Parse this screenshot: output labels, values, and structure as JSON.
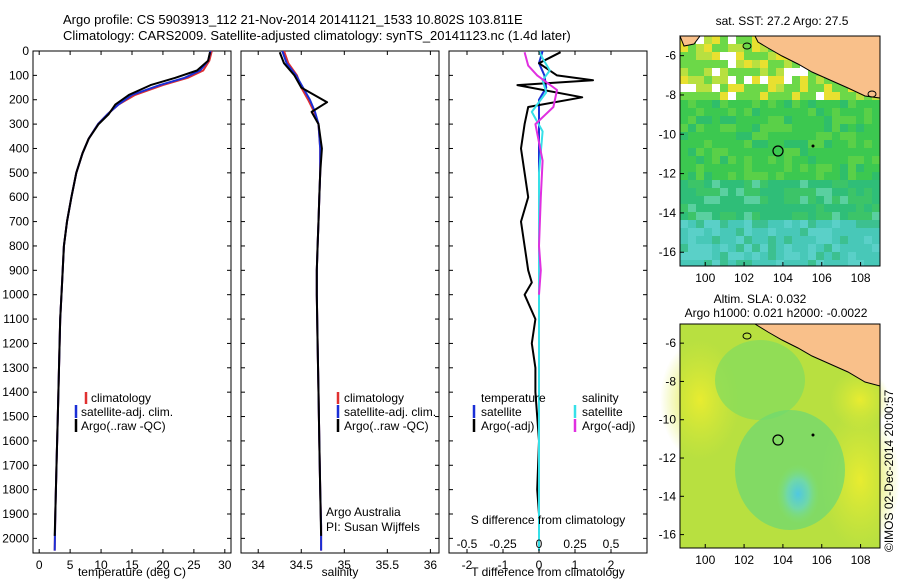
{
  "title_line1": "Argo profile: CS 5903913_112 21-Nov-2014 20141121_1533 10.802S 103.811E",
  "title_line2": "Climatology: CARS2009. Satellite-adjusted climatology: synTS_20141123.nc (1.4d later)",
  "side_label": "©IMOS 02-Dec-2014 20:00:57",
  "colors": {
    "climatology": "#e03030",
    "satellite": "#1a2fd6",
    "argo": "#000000",
    "sat_salinity": "#36e0e8",
    "argo_salinity": "#e030e0"
  },
  "chart_data": [
    {
      "type": "line",
      "name": "temperature-panel",
      "xlabel": "temperature (deg C)",
      "ylabel": "",
      "xlim": [
        -1,
        31
      ],
      "ylim": [
        2060,
        0
      ],
      "xticks": [
        0,
        5,
        10,
        15,
        20,
        25,
        30
      ],
      "yticks": [
        0,
        100,
        200,
        300,
        400,
        500,
        600,
        700,
        800,
        900,
        1000,
        1100,
        1200,
        1300,
        1400,
        1500,
        1600,
        1700,
        1800,
        1900,
        2000
      ],
      "legend": [
        "climatology",
        "satellite-adj. clim.",
        "Argo(..raw -QC)"
      ],
      "series": [
        {
          "name": "climatology",
          "color": "#e03030",
          "x": [
            27.9,
            27.5,
            26.5,
            24.0,
            20.0,
            15.5,
            12.8,
            11.0,
            9.5,
            8.0,
            7.0,
            6.0,
            5.2,
            4.5,
            4.0,
            3.7,
            3.4,
            3.2,
            3.0,
            2.8,
            2.6,
            2.5
          ],
          "y": [
            0,
            40,
            80,
            110,
            140,
            180,
            220,
            260,
            300,
            360,
            420,
            500,
            600,
            700,
            800,
            950,
            1100,
            1300,
            1500,
            1700,
            1900,
            2050
          ]
        },
        {
          "name": "satellite-adj. clim.",
          "color": "#1a2fd6",
          "x": [
            27.7,
            27.3,
            26.0,
            23.5,
            19.5,
            15.0,
            12.8,
            11.0,
            9.5,
            8.0,
            7.0,
            6.0,
            5.2,
            4.5,
            4.0,
            3.7,
            3.4,
            3.2,
            3.0,
            2.8,
            2.6,
            2.5
          ],
          "y": [
            0,
            40,
            80,
            110,
            140,
            180,
            220,
            260,
            300,
            360,
            420,
            500,
            600,
            700,
            800,
            950,
            1100,
            1300,
            1500,
            1700,
            1900,
            2050
          ]
        },
        {
          "name": "Argo(..raw -QC)",
          "color": "#000000",
          "x": [
            27.6,
            27.3,
            25.5,
            22.0,
            18.0,
            14.5,
            12.3,
            11.2,
            9.6,
            8.0,
            7.0,
            6.0,
            5.2,
            4.5,
            4.0,
            3.7,
            3.4,
            3.2,
            3.0,
            2.8,
            2.6,
            2.5
          ],
          "y": [
            5,
            40,
            80,
            110,
            140,
            180,
            220,
            260,
            300,
            360,
            420,
            500,
            600,
            700,
            800,
            950,
            1100,
            1300,
            1500,
            1700,
            1900,
            1990
          ]
        }
      ]
    },
    {
      "type": "line",
      "name": "salinity-panel",
      "xlabel": "salinity",
      "ylabel": "",
      "xlim": [
        33.8,
        36.1
      ],
      "ylim": [
        2060,
        0
      ],
      "xticks": [
        34,
        34.5,
        35,
        35.5,
        36
      ],
      "legend": [
        "climatology",
        "satellite-adj. clim.",
        "Argo(..raw -QC)"
      ],
      "annotations": [
        "Argo Australia",
        "PI: Susan Wijffels"
      ],
      "series": [
        {
          "name": "climatology",
          "color": "#e03030",
          "x": [
            34.3,
            34.35,
            34.45,
            34.5,
            34.58,
            34.65,
            34.7,
            34.72,
            34.72,
            34.71,
            34.7,
            34.69,
            34.68,
            34.68,
            34.69,
            34.7,
            34.71,
            34.72,
            34.73,
            34.73
          ],
          "y": [
            0,
            50,
            100,
            150,
            200,
            250,
            300,
            400,
            500,
            600,
            700,
            800,
            900,
            1000,
            1200,
            1400,
            1600,
            1800,
            1950,
            2050
          ]
        },
        {
          "name": "satellite-adj. clim.",
          "color": "#1a2fd6",
          "x": [
            34.28,
            34.33,
            34.44,
            34.52,
            34.6,
            34.66,
            34.7,
            34.72,
            34.72,
            34.71,
            34.7,
            34.69,
            34.68,
            34.68,
            34.69,
            34.7,
            34.71,
            34.72,
            34.73,
            34.73
          ],
          "y": [
            0,
            50,
            100,
            150,
            200,
            250,
            300,
            400,
            500,
            600,
            700,
            800,
            900,
            1000,
            1200,
            1400,
            1600,
            1800,
            1950,
            2050
          ]
        },
        {
          "name": "Argo(..raw -QC)",
          "color": "#000000",
          "x": [
            34.25,
            34.3,
            34.42,
            34.5,
            34.8,
            34.62,
            34.7,
            34.74,
            34.72,
            34.71,
            34.7,
            34.69,
            34.68,
            34.68,
            34.69,
            34.7,
            34.71,
            34.72,
            34.73
          ],
          "y": [
            5,
            50,
            100,
            150,
            210,
            250,
            300,
            400,
            500,
            600,
            700,
            800,
            900,
            1000,
            1200,
            1400,
            1600,
            1800,
            1990
          ]
        }
      ]
    },
    {
      "type": "line",
      "name": "difference-panel",
      "xlabel": "T difference from climatology",
      "xlabel_top": "S difference from climatology",
      "xlim": [
        -2.5,
        3.0
      ],
      "ylim": [
        2060,
        0
      ],
      "xticks": [
        -2,
        -1,
        0,
        1,
        2
      ],
      "xticks_top": [
        -0.5,
        -0.25,
        0,
        0.25,
        0.5
      ],
      "legend_left_title": "temperature",
      "legend_right_title": "salinity",
      "legend_left": [
        "satellite",
        "Argo(-adj)"
      ],
      "legend_right": [
        "satellite",
        "Argo(-adj)"
      ],
      "series": [
        {
          "name": "T satellite",
          "color": "#1a2fd6",
          "x": [
            0.1,
            0.0,
            0.15,
            0.2,
            0.0,
            0.0,
            0.0,
            0.0,
            0.0,
            0.0,
            0.0
          ],
          "y": [
            0,
            50,
            100,
            150,
            200,
            300,
            500,
            800,
            1200,
            1600,
            2050
          ]
        },
        {
          "name": "T Argo(-adj)",
          "color": "#000000",
          "x": [
            0.6,
            0.0,
            0.5,
            1.5,
            -0.6,
            1.2,
            -0.3,
            -0.4,
            -0.5,
            -0.4,
            -0.3,
            -0.5,
            -0.4,
            -0.3,
            -0.2,
            -0.4,
            -0.1,
            -0.2,
            -0.1,
            -0.1,
            -0.05,
            0.0,
            -0.05,
            0.0,
            0.0
          ],
          "y": [
            5,
            50,
            100,
            120,
            140,
            190,
            230,
            300,
            400,
            500,
            600,
            700,
            800,
            900,
            950,
            1000,
            1100,
            1200,
            1300,
            1400,
            1500,
            1600,
            1800,
            1900,
            1990
          ]
        },
        {
          "name": "S satellite",
          "color": "#36e0e8",
          "x": [
            0.0,
            0.1,
            0.3,
            0.1,
            0.2,
            -0.2,
            0.1,
            0.0,
            0.0,
            0.0,
            0.0,
            0.0
          ],
          "y": [
            0,
            30,
            80,
            120,
            170,
            250,
            330,
            500,
            800,
            1200,
            1600,
            2050
          ]
        },
        {
          "name": "S Argo(-adj)",
          "color": "#e030e0",
          "x": [
            -0.4,
            -0.3,
            -0.05,
            0.5,
            0.4,
            -0.1,
            0.1,
            0.05,
            0.0,
            0.05,
            0.0
          ],
          "y": [
            5,
            60,
            100,
            160,
            230,
            300,
            450,
            600,
            800,
            900,
            1000
          ]
        }
      ]
    },
    {
      "type": "heatmap",
      "name": "sst-map",
      "title": "sat. SST: 27.2 Argo: 27.5",
      "xlim": [
        98.7,
        109
      ],
      "ylim": [
        -16.7,
        -5
      ],
      "xticks": [
        100,
        102,
        104,
        106,
        108
      ],
      "yticks": [
        -6,
        -8,
        -10,
        -12,
        -14,
        -16
      ],
      "float_position": {
        "lon": 103.811,
        "lat": -10.802
      }
    },
    {
      "type": "heatmap",
      "name": "sla-map",
      "title": "Altim. SLA: 0.032",
      "subtitle": "Argo h1000: 0.021 h2000: -0.0022",
      "xlim": [
        98.7,
        109
      ],
      "ylim": [
        -16.7,
        -5
      ],
      "xticks": [
        100,
        102,
        104,
        106,
        108
      ],
      "yticks": [
        -6,
        -8,
        -10,
        -12,
        -14,
        -16
      ],
      "float_position": {
        "lon": 103.811,
        "lat": -10.802
      }
    }
  ]
}
